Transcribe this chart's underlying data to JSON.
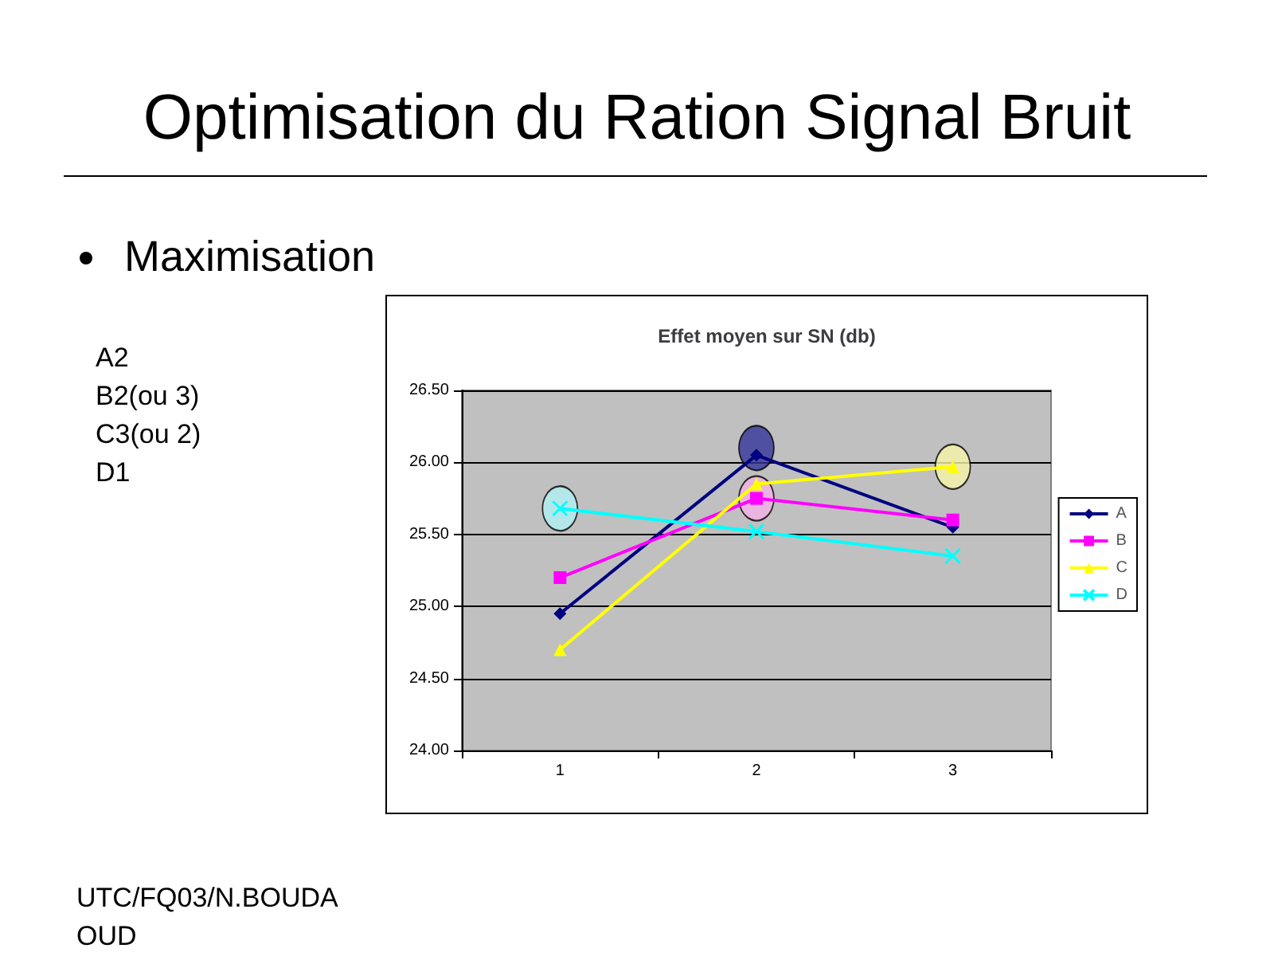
{
  "chart_data": {
    "type": "line",
    "title": "Optimisation du Ration Signal Bruit",
    "subtitle": "Maximisation",
    "annotations": [
      "Effet moyen sur SN (db)",
      "A2",
      "B2(ou 3)",
      "C3(ou 2)",
      "D1",
      "UTC/FQ03/N.BOUDAOUD"
    ],
    "categories": [
      "1",
      "2",
      "3"
    ],
    "series": [
      {
        "name": "A",
        "color": "#000080",
        "marker": "diamond",
        "values": [
          24.95,
          26.05,
          25.55
        ]
      },
      {
        "name": "B",
        "color": "#ff00ff",
        "marker": "square",
        "values": [
          25.2,
          25.75,
          25.6
        ]
      },
      {
        "name": "C",
        "color": "#ffff00",
        "marker": "triangle",
        "values": [
          24.7,
          25.85,
          25.97
        ]
      },
      {
        "name": "D",
        "color": "#00ffff",
        "marker": "cross",
        "values": [
          25.68,
          25.52,
          25.35
        ]
      },
      {
        "type": "scatter",
        "marker": "circle",
        "colors": [
          "#b0f0f4",
          "#333399",
          "#f8f4a8"
        ],
        "values": [
          25.68,
          26.1,
          25.97
        ]
      },
      {
        "type": "scatter",
        "marker": "circle",
        "colors": [
          null,
          "#f4b0e8",
          null
        ],
        "values": [
          null,
          25.75,
          null
        ]
      }
    ],
    "ylim": [
      24,
      26.5
    ],
    "yticks": [
      {
        "value": 24,
        "label": "24.00"
      },
      {
        "value": 24.5,
        "label": "24.50"
      },
      {
        "value": 25,
        "label": "25.00"
      },
      {
        "value": 25.5,
        "label": "25.50"
      },
      {
        "value": 26,
        "label": "26.00"
      },
      {
        "value": 26.5,
        "label": "26.50"
      }
    ],
    "grid": "y",
    "legend": "right"
  }
}
